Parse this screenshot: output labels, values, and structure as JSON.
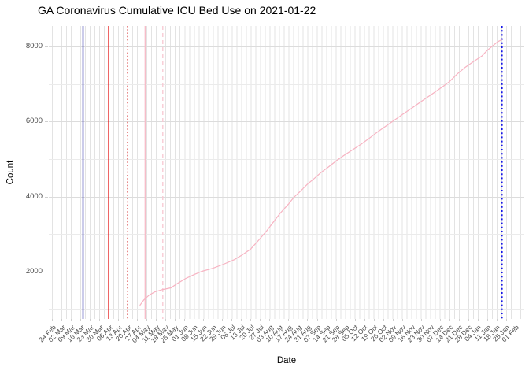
{
  "title": "GA Coronavirus Cumulative ICU Bed Use on 2021-01-22",
  "chart_data": {
    "type": "line",
    "title": "GA Coronavirus Cumulative ICU Bed Use on 2021-01-22",
    "xlabel": "Date",
    "ylabel": "Count",
    "legend": "none",
    "grid": "major and minor light-gray gridlines on white panel",
    "x_start_date": "2020-02-24",
    "x_end_date": "2021-02-01",
    "x_tick_interval_days": 7,
    "x_tick_labels": [
      "24 Feb",
      "02 Mar",
      "09 Mar",
      "16 Mar",
      "23 Mar",
      "30 Mar",
      "06 Apr",
      "13 Apr",
      "20 Apr",
      "27 Apr",
      "04 May",
      "11 May",
      "18 May",
      "25 May",
      "01 Jun",
      "08 Jun",
      "15 Jun",
      "22 Jun",
      "29 Jun",
      "06 Jul",
      "13 Jul",
      "20 Jul",
      "27 Jul",
      "03 Aug",
      "10 Aug",
      "17 Aug",
      "24 Aug",
      "31 Aug",
      "07 Sep",
      "14 Sep",
      "21 Sep",
      "28 Sep",
      "05 Oct",
      "12 Oct",
      "19 Oct",
      "26 Oct",
      "02 Nov",
      "09 Nov",
      "16 Nov",
      "23 Nov",
      "30 Nov",
      "07 Dec",
      "14 Dec",
      "21 Dec",
      "28 Dec",
      "04 Jan",
      "11 Jan",
      "18 Jan",
      "25 Jan",
      "01 Feb"
    ],
    "y_ticks": [
      2000,
      4000,
      6000,
      8000
    ],
    "y_minor_ticks": [
      1000,
      3000,
      5000,
      7000
    ],
    "ylim": [
      750,
      8540
    ],
    "series": [
      {
        "name": "cumulative-icu-bed-use",
        "color": "#f7b3c2",
        "points": [
          [
            "2020-04-29",
            1100
          ],
          [
            "2020-05-02",
            1250
          ],
          [
            "2020-05-06",
            1380
          ],
          [
            "2020-05-10",
            1460
          ],
          [
            "2020-05-16",
            1525
          ],
          [
            "2020-05-22",
            1570
          ],
          [
            "2020-05-27",
            1690
          ],
          [
            "2020-06-02",
            1820
          ],
          [
            "2020-06-08",
            1920
          ],
          [
            "2020-06-14",
            2010
          ],
          [
            "2020-06-22",
            2090
          ],
          [
            "2020-06-30",
            2200
          ],
          [
            "2020-07-08",
            2320
          ],
          [
            "2020-07-14",
            2450
          ],
          [
            "2020-07-20",
            2600
          ],
          [
            "2020-07-26",
            2840
          ],
          [
            "2020-08-01",
            3090
          ],
          [
            "2020-08-06",
            3330
          ],
          [
            "2020-08-11",
            3560
          ],
          [
            "2020-08-17",
            3800
          ],
          [
            "2020-08-21",
            3980
          ],
          [
            "2020-08-26",
            4150
          ],
          [
            "2020-08-31",
            4330
          ],
          [
            "2020-09-05",
            4480
          ],
          [
            "2020-09-10",
            4640
          ],
          [
            "2020-09-16",
            4800
          ],
          [
            "2020-09-22",
            4970
          ],
          [
            "2020-09-28",
            5120
          ],
          [
            "2020-10-04",
            5260
          ],
          [
            "2020-10-10",
            5400
          ],
          [
            "2020-10-16",
            5560
          ],
          [
            "2020-10-23",
            5750
          ],
          [
            "2020-11-02",
            6000
          ],
          [
            "2020-11-09",
            6180
          ],
          [
            "2020-11-16",
            6350
          ],
          [
            "2020-11-25",
            6580
          ],
          [
            "2020-12-04",
            6800
          ],
          [
            "2020-12-10",
            6950
          ],
          [
            "2020-12-14",
            7060
          ],
          [
            "2020-12-20",
            7270
          ],
          [
            "2020-12-26",
            7450
          ],
          [
            "2021-01-01",
            7600
          ],
          [
            "2021-01-07",
            7740
          ],
          [
            "2021-01-11",
            7890
          ],
          [
            "2021-01-15",
            8010
          ],
          [
            "2021-01-19",
            8130
          ],
          [
            "2021-01-22",
            8180
          ]
        ]
      }
    ],
    "vlines": [
      {
        "date": "2020-03-18",
        "style": "solid",
        "color": "#00009b",
        "stroke_width": 1.4
      },
      {
        "date": "2020-04-06",
        "style": "solid",
        "color": "#e30000",
        "stroke_width": 1.4
      },
      {
        "date": "2020-04-20",
        "style": "dotted",
        "color": "#d42a2a",
        "stroke_width": 1.3
      },
      {
        "date": "2020-05-03",
        "style": "solid",
        "color": "#f6bcc8",
        "stroke_width": 1.5
      },
      {
        "date": "2020-05-16",
        "style": "dashed",
        "color": "#f8c7d2",
        "stroke_width": 1.3
      },
      {
        "date": "2021-01-22",
        "style": "dotted",
        "color": "#1414e8",
        "stroke_width": 2
      }
    ]
  }
}
